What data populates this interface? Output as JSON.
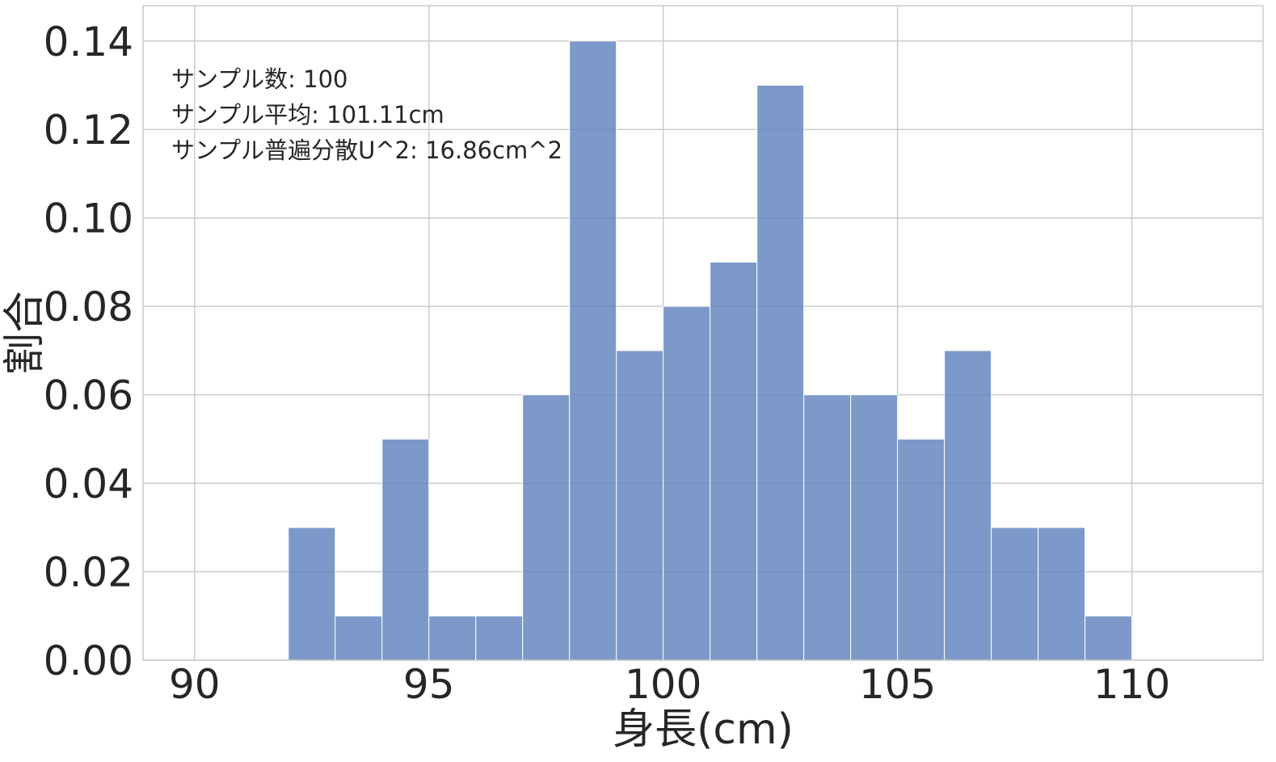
{
  "chart_data": {
    "type": "bar",
    "xlabel": "身長(cm)",
    "ylabel": "割合",
    "xlim": [
      88.9,
      112.8
    ],
    "ylim": [
      0,
      0.148
    ],
    "xticks": [
      90,
      95,
      100,
      105,
      110
    ],
    "xtick_labels": [
      "90",
      "95",
      "100",
      "105",
      "110"
    ],
    "yticks": [
      0.0,
      0.02,
      0.04,
      0.06,
      0.08,
      0.1,
      0.12,
      0.14
    ],
    "ytick_labels": [
      "0.00",
      "0.02",
      "0.04",
      "0.06",
      "0.08",
      "0.10",
      "0.12",
      "0.14"
    ],
    "bin_width": 1,
    "bins": [
      {
        "start": 92,
        "value": 0.03
      },
      {
        "start": 93,
        "value": 0.01
      },
      {
        "start": 94,
        "value": 0.05
      },
      {
        "start": 95,
        "value": 0.01
      },
      {
        "start": 96,
        "value": 0.01
      },
      {
        "start": 97,
        "value": 0.06
      },
      {
        "start": 98,
        "value": 0.14
      },
      {
        "start": 99,
        "value": 0.07
      },
      {
        "start": 100,
        "value": 0.08
      },
      {
        "start": 101,
        "value": 0.09
      },
      {
        "start": 102,
        "value": 0.13
      },
      {
        "start": 103,
        "value": 0.06
      },
      {
        "start": 104,
        "value": 0.06
      },
      {
        "start": 105,
        "value": 0.05
      },
      {
        "start": 106,
        "value": 0.07
      },
      {
        "start": 107,
        "value": 0.03
      },
      {
        "start": 108,
        "value": 0.03
      },
      {
        "start": 109,
        "value": 0.01
      }
    ],
    "annotations": [
      "サンプル数: 100",
      "サンプル平均: 101.11cm",
      "サンプル普遍分散U^2: 16.86cm^2"
    ],
    "grid": true,
    "colors": {
      "bar": "#5b7fbb",
      "grid": "#cccccc",
      "text": "#262626"
    }
  }
}
